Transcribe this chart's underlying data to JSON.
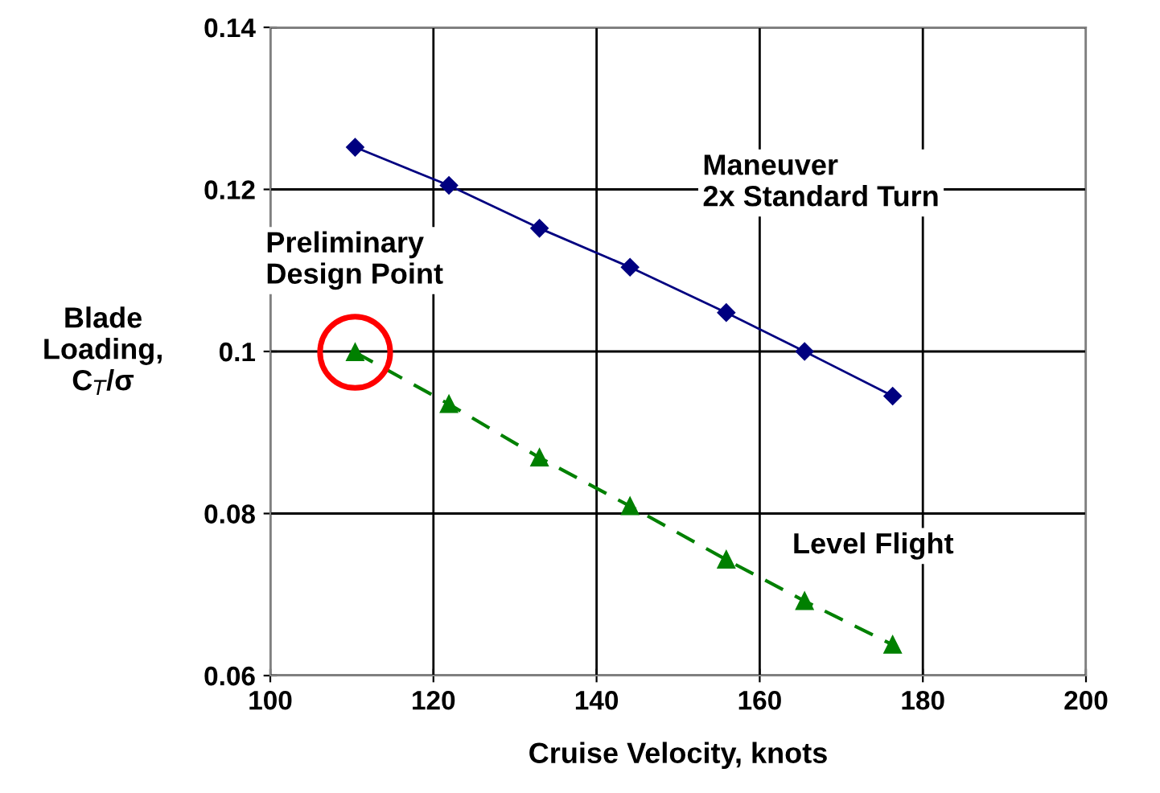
{
  "chart_data": {
    "type": "line",
    "xlabel": "Cruise Velocity, knots",
    "ylabel": "Blade\nLoading,\nC$_{T}$/σ",
    "xlim": [
      100,
      200
    ],
    "xticks": [
      100,
      120,
      140,
      160,
      180,
      200
    ],
    "ylim": [
      0.06,
      0.14
    ],
    "yticks": [
      0.06,
      0.08,
      0.1,
      0.12,
      0.14
    ],
    "grid": true,
    "legend": false,
    "series": [
      {
        "name": "Maneuver\n2x Standard Turn",
        "color": "#000080",
        "marker": "diamond",
        "line_style": "solid",
        "x": [
          110.4,
          121.9,
          133.0,
          144.1,
          155.9,
          165.5,
          176.3
        ],
        "values": [
          0.1252,
          0.1205,
          0.1152,
          0.1104,
          0.1048,
          0.1,
          0.0945
        ]
      },
      {
        "name": "Level Flight",
        "color": "#008000",
        "marker": "triangle",
        "line_style": "dashed",
        "x": [
          110.4,
          121.9,
          133.0,
          144.1,
          155.9,
          165.5,
          176.3
        ],
        "values": [
          0.0999,
          0.0935,
          0.0869,
          0.0809,
          0.0743,
          0.0692,
          0.0638
        ]
      }
    ],
    "annotations": [
      {
        "text": "Preliminary\nDesign Point",
        "x": 110.4,
        "y": 0.0999
      }
    ]
  }
}
